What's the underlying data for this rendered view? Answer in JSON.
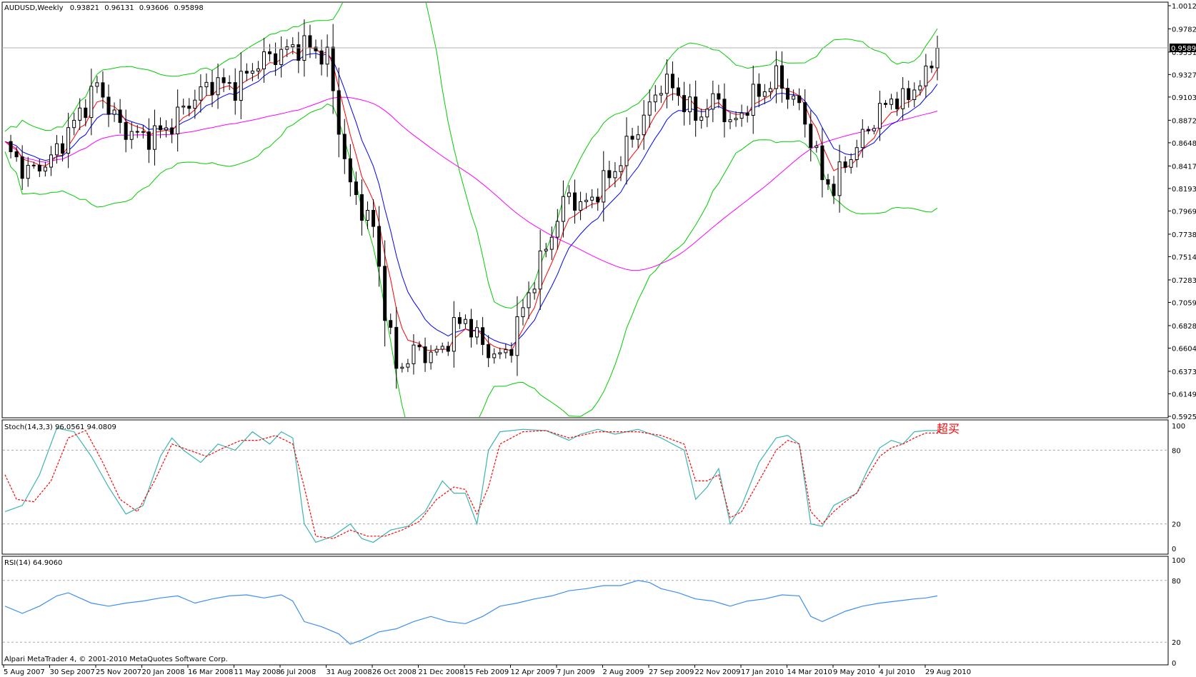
{
  "chart_data": [
    {
      "type": "candlestick",
      "title": "AUDUSD,Weekly",
      "ohlc": {
        "open": "0.93821",
        "high": "0.96131",
        "low": "0.93606",
        "close": "0.95898"
      },
      "current_price": "0.95898",
      "ylim": [
        0.5925,
        1.0012
      ],
      "y_ticks": [
        "1.00120",
        "0.97820",
        "0.95510",
        "0.93270",
        "0.91030",
        "0.88720",
        "0.86480",
        "0.84170",
        "0.81930",
        "0.79690",
        "0.77380",
        "0.75140",
        "0.72830",
        "0.70590",
        "0.68280",
        "0.66040",
        "0.63730",
        "0.61490",
        "0.59250"
      ],
      "x_ticks": [
        "5 Aug 2007",
        "30 Sep 2007",
        "25 Nov 2007",
        "20 Jan 2008",
        "16 Mar 2008",
        "11 May 2008",
        "6 Jul 2008",
        "31 Aug 2008",
        "26 Oct 2008",
        "21 Dec 2008",
        "15 Feb 2009",
        "12 Apr 2009",
        "7 Jun 2009",
        "2 Aug 2009",
        "27 Sep 2009",
        "22 Nov 2009",
        "17 Jan 2010",
        "14 Mar 2010",
        "9 May 2010",
        "4 Jul 2010",
        "29 Aug 2010"
      ],
      "price_path": [
        [
          0,
          0.86
        ],
        [
          4,
          0.835
        ],
        [
          8,
          0.848
        ],
        [
          12,
          0.885
        ],
        [
          16,
          0.922
        ],
        [
          20,
          0.88
        ],
        [
          24,
          0.87
        ],
        [
          28,
          0.878
        ],
        [
          32,
          0.905
        ],
        [
          36,
          0.925
        ],
        [
          40,
          0.92
        ],
        [
          44,
          0.945
        ],
        [
          48,
          0.955
        ],
        [
          52,
          0.962
        ],
        [
          56,
          0.95
        ],
        [
          58,
          0.88
        ],
        [
          60,
          0.82
        ],
        [
          62,
          0.8
        ],
        [
          64,
          0.78
        ],
        [
          66,
          0.7
        ],
        [
          68,
          0.64
        ],
        [
          70,
          0.65
        ],
        [
          72,
          0.66
        ],
        [
          74,
          0.652
        ],
        [
          76,
          0.66
        ],
        [
          78,
          0.68
        ],
        [
          80,
          0.69
        ],
        [
          82,
          0.67
        ],
        [
          84,
          0.658
        ],
        [
          86,
          0.65
        ],
        [
          88,
          0.665
        ],
        [
          90,
          0.7
        ],
        [
          92,
          0.73
        ],
        [
          94,
          0.76
        ],
        [
          96,
          0.79
        ],
        [
          98,
          0.815
        ],
        [
          100,
          0.8
        ],
        [
          102,
          0.81
        ],
        [
          104,
          0.825
        ],
        [
          106,
          0.838
        ],
        [
          108,
          0.86
        ],
        [
          110,
          0.88
        ],
        [
          112,
          0.9
        ],
        [
          114,
          0.925
        ],
        [
          116,
          0.92
        ],
        [
          118,
          0.905
        ],
        [
          120,
          0.89
        ],
        [
          122,
          0.9
        ],
        [
          124,
          0.91
        ],
        [
          126,
          0.88
        ],
        [
          128,
          0.895
        ],
        [
          130,
          0.91
        ],
        [
          132,
          0.918
        ],
        [
          134,
          0.93
        ],
        [
          136,
          0.915
        ],
        [
          138,
          0.9
        ],
        [
          140,
          0.87
        ],
        [
          142,
          0.83
        ],
        [
          144,
          0.82
        ],
        [
          146,
          0.845
        ],
        [
          148,
          0.86
        ],
        [
          150,
          0.88
        ],
        [
          152,
          0.895
        ],
        [
          154,
          0.91
        ],
        [
          156,
          0.905
        ],
        [
          158,
          0.92
        ],
        [
          160,
          0.93
        ],
        [
          162,
          0.959
        ]
      ],
      "series": [
        {
          "name": "",
          "color": "#ff0000"
        },
        {
          "name": "",
          "color": "#0000ff"
        },
        {
          "name": "",
          "color": "#00cc00"
        },
        {
          "name": "",
          "color": "#ff00ff"
        }
      ]
    },
    {
      "type": "line",
      "title": "Stoch(14,3,3) 96.0561 94.0809",
      "annotation": "超买",
      "ylim": [
        0,
        100
      ],
      "y_ticks": [
        "100",
        "80",
        "20",
        "0"
      ],
      "levels": [
        80,
        20
      ],
      "series": [
        {
          "name": "",
          "color": "#3cb3b3",
          "points": [
            [
              0,
              30
            ],
            [
              3,
              35
            ],
            [
              6,
              60
            ],
            [
              9,
              98
            ],
            [
              12,
              95
            ],
            [
              15,
              75
            ],
            [
              18,
              50
            ],
            [
              21,
              28
            ],
            [
              24,
              35
            ],
            [
              27,
              75
            ],
            [
              29,
              90
            ],
            [
              31,
              80
            ],
            [
              34,
              70
            ],
            [
              37,
              85
            ],
            [
              40,
              80
            ],
            [
              43,
              95
            ],
            [
              46,
              85
            ],
            [
              48,
              95
            ],
            [
              50,
              90
            ],
            [
              52,
              20
            ],
            [
              54,
              5
            ],
            [
              57,
              10
            ],
            [
              60,
              20
            ],
            [
              62,
              8
            ],
            [
              64,
              5
            ],
            [
              67,
              15
            ],
            [
              70,
              18
            ],
            [
              73,
              30
            ],
            [
              76,
              55
            ],
            [
              78,
              45
            ],
            [
              80,
              45
            ],
            [
              82,
              20
            ],
            [
              84,
              80
            ],
            [
              86,
              95
            ],
            [
              90,
              97
            ],
            [
              94,
              96
            ],
            [
              98,
              88
            ],
            [
              100,
              93
            ],
            [
              103,
              97
            ],
            [
              106,
              93
            ],
            [
              110,
              97
            ],
            [
              114,
              90
            ],
            [
              118,
              80
            ],
            [
              120,
              40
            ],
            [
              122,
              50
            ],
            [
              124,
              65
            ],
            [
              126,
              20
            ],
            [
              128,
              35
            ],
            [
              131,
              70
            ],
            [
              134,
              90
            ],
            [
              136,
              92
            ],
            [
              138,
              85
            ],
            [
              140,
              20
            ],
            [
              142,
              18
            ],
            [
              144,
              35
            ],
            [
              146,
              40
            ],
            [
              148,
              45
            ],
            [
              150,
              65
            ],
            [
              152,
              82
            ],
            [
              154,
              88
            ],
            [
              156,
              85
            ],
            [
              158,
              95
            ],
            [
              160,
              96
            ],
            [
              162,
              96
            ]
          ]
        },
        {
          "name": "",
          "color": "#ff0000",
          "dashed": true,
          "points": [
            [
              0,
              60
            ],
            [
              2,
              40
            ],
            [
              5,
              38
            ],
            [
              8,
              55
            ],
            [
              11,
              90
            ],
            [
              14,
              96
            ],
            [
              17,
              70
            ],
            [
              20,
              40
            ],
            [
              23,
              30
            ],
            [
              26,
              55
            ],
            [
              29,
              85
            ],
            [
              32,
              80
            ],
            [
              35,
              75
            ],
            [
              38,
              82
            ],
            [
              41,
              88
            ],
            [
              44,
              88
            ],
            [
              47,
              92
            ],
            [
              50,
              85
            ],
            [
              52,
              50
            ],
            [
              54,
              10
            ],
            [
              57,
              8
            ],
            [
              60,
              15
            ],
            [
              63,
              10
            ],
            [
              66,
              10
            ],
            [
              69,
              15
            ],
            [
              72,
              22
            ],
            [
              75,
              40
            ],
            [
              78,
              50
            ],
            [
              80,
              48
            ],
            [
              82,
              28
            ],
            [
              84,
              50
            ],
            [
              86,
              85
            ],
            [
              90,
              95
            ],
            [
              94,
              96
            ],
            [
              98,
              90
            ],
            [
              100,
              92
            ],
            [
              103,
              95
            ],
            [
              106,
              95
            ],
            [
              110,
              95
            ],
            [
              114,
              92
            ],
            [
              118,
              85
            ],
            [
              120,
              55
            ],
            [
              122,
              55
            ],
            [
              124,
              60
            ],
            [
              126,
              25
            ],
            [
              128,
              30
            ],
            [
              131,
              55
            ],
            [
              134,
              80
            ],
            [
              136,
              88
            ],
            [
              138,
              85
            ],
            [
              140,
              30
            ],
            [
              142,
              20
            ],
            [
              144,
              30
            ],
            [
              146,
              38
            ],
            [
              148,
              45
            ],
            [
              150,
              60
            ],
            [
              152,
              75
            ],
            [
              154,
              82
            ],
            [
              156,
              85
            ],
            [
              158,
              90
            ],
            [
              160,
              94
            ],
            [
              162,
              94
            ]
          ]
        }
      ]
    },
    {
      "type": "line",
      "title": "RSI(14) 64.9060",
      "ylim": [
        0,
        100
      ],
      "y_ticks": [
        "100",
        "80",
        "20",
        "0"
      ],
      "levels": [
        80,
        20
      ],
      "series": [
        {
          "name": "",
          "color": "#3c8ef0",
          "points": [
            [
              0,
              55
            ],
            [
              3,
              48
            ],
            [
              6,
              55
            ],
            [
              9,
              65
            ],
            [
              11,
              68
            ],
            [
              13,
              63
            ],
            [
              15,
              58
            ],
            [
              18,
              55
            ],
            [
              21,
              58
            ],
            [
              24,
              60
            ],
            [
              27,
              63
            ],
            [
              30,
              65
            ],
            [
              33,
              58
            ],
            [
              36,
              62
            ],
            [
              39,
              65
            ],
            [
              42,
              66
            ],
            [
              45,
              63
            ],
            [
              48,
              66
            ],
            [
              50,
              60
            ],
            [
              52,
              40
            ],
            [
              55,
              35
            ],
            [
              58,
              28
            ],
            [
              60,
              18
            ],
            [
              62,
              22
            ],
            [
              65,
              30
            ],
            [
              68,
              33
            ],
            [
              71,
              40
            ],
            [
              74,
              45
            ],
            [
              77,
              40
            ],
            [
              80,
              38
            ],
            [
              83,
              45
            ],
            [
              86,
              55
            ],
            [
              89,
              58
            ],
            [
              92,
              62
            ],
            [
              95,
              65
            ],
            [
              98,
              70
            ],
            [
              101,
              72
            ],
            [
              104,
              75
            ],
            [
              107,
              75
            ],
            [
              110,
              80
            ],
            [
              112,
              78
            ],
            [
              114,
              72
            ],
            [
              117,
              68
            ],
            [
              120,
              62
            ],
            [
              123,
              60
            ],
            [
              126,
              55
            ],
            [
              129,
              60
            ],
            [
              132,
              62
            ],
            [
              135,
              66
            ],
            [
              138,
              65
            ],
            [
              140,
              45
            ],
            [
              142,
              40
            ],
            [
              144,
              45
            ],
            [
              146,
              50
            ],
            [
              149,
              55
            ],
            [
              152,
              58
            ],
            [
              155,
              60
            ],
            [
              158,
              62
            ],
            [
              160,
              63
            ],
            [
              162,
              65
            ]
          ]
        }
      ]
    }
  ],
  "footer": {
    "copyright": "Alpari MetaTrader 4, © 2001-2010 MetaQuotes Software Corp."
  }
}
